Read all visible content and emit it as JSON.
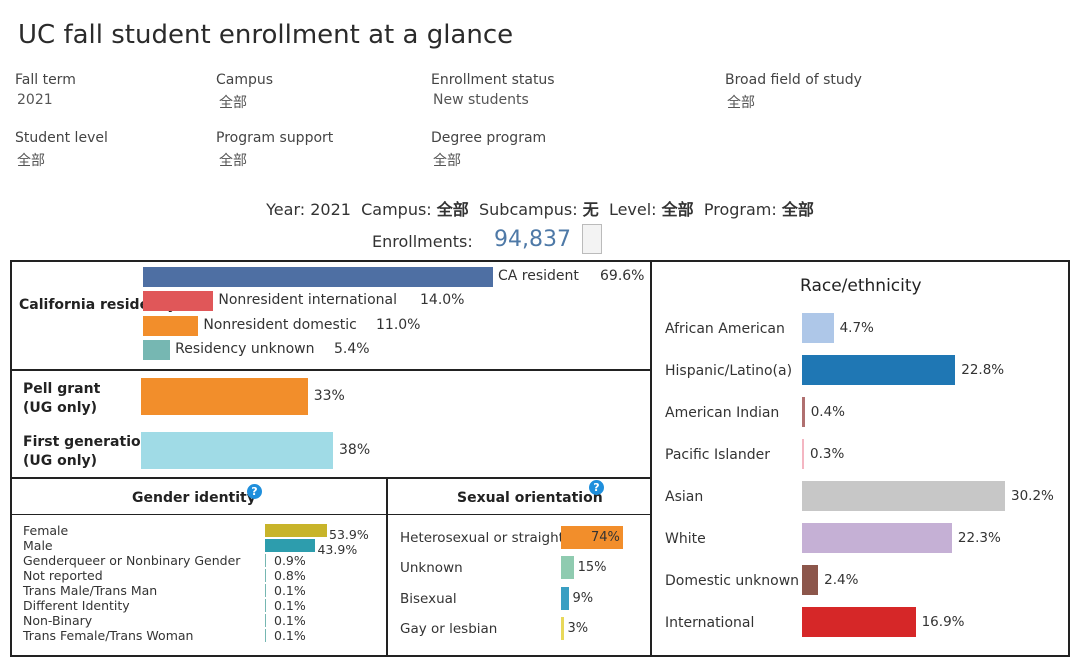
{
  "title": "UC fall student enrollment at a glance",
  "filters": [
    {
      "label": "Fall term",
      "value": "2021"
    },
    {
      "label": "Campus",
      "value": "全部"
    },
    {
      "label": "Enrollment status",
      "value": "New students"
    },
    {
      "label": "Broad field of study",
      "value": "全部"
    },
    {
      "label": "Student level",
      "value": "全部"
    },
    {
      "label": "Program support",
      "value": "全部"
    },
    {
      "label": "Degree program",
      "value": "全部"
    }
  ],
  "summary": {
    "year_label": "Year:",
    "year": "2021",
    "campus_label": "Campus:",
    "campus": "全部",
    "subcampus_label": "Subcampus:",
    "subcampus": "无",
    "level_label": "Level:",
    "level": "全部",
    "program_label": "Program:",
    "program": "全部",
    "enrollments_label": "Enrollments:",
    "enrollments": "94,837"
  },
  "colors": {
    "ca_resident": "#4e6fa3",
    "nonres_intl": "#e05759",
    "nonres_dom": "#f28e2b",
    "res_unknown": "#76b7b2",
    "pell": "#f28e2b",
    "firstgen": "#a0dbe6",
    "female": "#c8b42a",
    "male": "#2d9dad",
    "small": "#76b7b2",
    "hetero": "#f28e2b",
    "unknown_so": "#8fcbb0",
    "bisexual": "#3a9fc2",
    "gay": "#e8d85a",
    "qicon": "#1f8fdc"
  },
  "chart_data": [
    {
      "type": "bar",
      "title": "California residency",
      "categories": [
        "CA resident",
        "Nonresident international",
        "Nonresident domestic",
        "Residency unknown"
      ],
      "values": [
        69.6,
        14.0,
        11.0,
        5.4
      ],
      "labels": [
        "69.6%",
        "14.0%",
        "11.0%",
        "5.4%"
      ]
    },
    {
      "type": "bar",
      "categories": [
        "Pell grant (UG only)",
        "First generation (UG only)"
      ],
      "category_lines": [
        [
          "Pell grant",
          "(UG only)"
        ],
        [
          "First generation",
          "(UG only)"
        ]
      ],
      "values": [
        33,
        38
      ],
      "labels": [
        "33%",
        "38%"
      ]
    },
    {
      "type": "bar",
      "title": "Gender identity",
      "categories": [
        "Female",
        "Male",
        "Genderqueer or Nonbinary Gender",
        "Not reported",
        "Trans Male/Trans Man",
        "Different Identity",
        "Non-Binary",
        "Trans Female/Trans Woman"
      ],
      "values": [
        53.9,
        43.9,
        0.9,
        0.8,
        0.1,
        0.1,
        0.1,
        0.1
      ],
      "labels": [
        "53.9%",
        "43.9%",
        "0.9%",
        "0.8%",
        "0.1%",
        "0.1%",
        "0.1%",
        "0.1%"
      ]
    },
    {
      "type": "bar",
      "title": "Sexual orientation",
      "categories": [
        "Heterosexual or straight",
        "Unknown",
        "Bisexual",
        "Gay or lesbian"
      ],
      "values": [
        74,
        15,
        9,
        3
      ],
      "labels": [
        "74%",
        "15%",
        "9%",
        "3%"
      ]
    },
    {
      "type": "bar",
      "title": "Race/ethnicity",
      "categories": [
        "African American",
        "Hispanic/Latino(a)",
        "American Indian",
        "Pacific Islander",
        "Asian",
        "White",
        "Domestic unknown",
        "International"
      ],
      "values": [
        4.7,
        22.8,
        0.4,
        0.3,
        30.2,
        22.3,
        2.4,
        16.9
      ],
      "labels": [
        "4.7%",
        "22.8%",
        "0.4%",
        "0.3%",
        "30.2%",
        "22.3%",
        "2.4%",
        "16.9%"
      ],
      "colors": [
        "#aec7e8",
        "#1f77b4",
        "#b07070",
        "#f4b6c2",
        "#c7c7c7",
        "#c5b0d5",
        "#8c564b",
        "#d62728"
      ]
    }
  ]
}
